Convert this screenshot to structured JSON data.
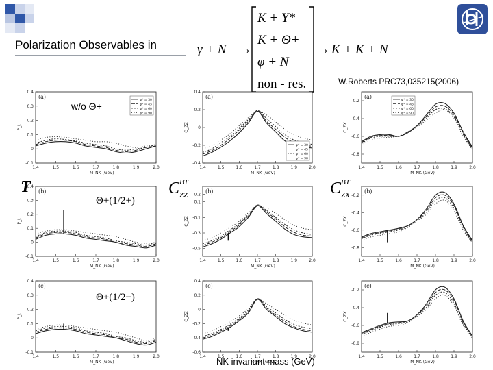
{
  "slide": {
    "title": "Polarization Observables in",
    "citation": "W.Roberts PRC73,035215(2006)",
    "xaxis_title": "NK invariant mass (GeV)",
    "accent_color": "#1f3f8f"
  },
  "reaction": {
    "initial": "γ + N",
    "arrow1": "→",
    "intermediates": [
      "K + Y*",
      "K + Θ+",
      "φ + N",
      "non - res."
    ],
    "arrow2": "→",
    "final": "K + K + N"
  },
  "row_labels": [
    "w/o  Θ+",
    "Θ+(1/2+)",
    "Θ+(1/2−)"
  ],
  "observables": [
    {
      "name": "T"
    },
    {
      "name": "C",
      "sup": "BT",
      "sub": "ZZ"
    },
    {
      "name": "C",
      "sup": "BT",
      "sub": "ZX"
    }
  ],
  "chart_data": {
    "type": "line",
    "x_tick_labels": [
      "1.4",
      "1.5",
      "1.6",
      "1.7",
      "1.8",
      "1.9",
      "2.0"
    ],
    "x": [
      1.4,
      1.45,
      1.5,
      1.55,
      1.6,
      1.65,
      1.7,
      1.75,
      1.8,
      1.85,
      1.9,
      1.95,
      2.0
    ],
    "xlim": [
      1.4,
      2.0
    ],
    "xlabel": "M_NK (GeV)",
    "line_names": [
      "φ* = 30",
      "φ* = 45",
      "φ* = 60",
      "φ* = 90"
    ],
    "panels": [
      {
        "row": 0,
        "col": 0,
        "label": "(a)",
        "ylabel": "P_t",
        "ylim": [
          -0.1,
          0.4
        ],
        "y_tick_labels": [
          "-0.1",
          "0",
          "0.1",
          "0.2",
          "0.3",
          "0.4"
        ],
        "legend": "top-right",
        "series": [
          {
            "name": "φ* = 30",
            "values": [
              0.02,
              0.04,
              0.05,
              0.05,
              0.04,
              0.02,
              0.01,
              0.0,
              -0.02,
              -0.03,
              -0.02,
              0.0,
              0.02
            ]
          },
          {
            "name": "φ* = 45",
            "values": [
              0.03,
              0.05,
              0.06,
              0.06,
              0.05,
              0.03,
              0.02,
              0.01,
              -0.01,
              -0.02,
              -0.01,
              0.01,
              0.02
            ]
          },
          {
            "name": "φ* = 60",
            "values": [
              0.04,
              0.06,
              0.07,
              0.065,
              0.055,
              0.04,
              0.03,
              0.02,
              0.0,
              -0.01,
              0.0,
              0.01,
              0.03
            ]
          },
          {
            "name": "φ* = 90",
            "values": [
              0.06,
              0.08,
              0.085,
              0.08,
              0.07,
              0.06,
              0.05,
              0.05,
              0.04,
              0.02,
              0.01,
              0.02,
              0.03
            ]
          }
        ]
      },
      {
        "row": 0,
        "col": 1,
        "label": "(a)",
        "ylabel": "C_ZZ",
        "ylim": [
          -0.4,
          0.4
        ],
        "y_tick_labels": [
          "-0.4",
          "-0.2",
          "0",
          "0.2",
          "0.4"
        ],
        "legend": "bottom-right",
        "series": [
          {
            "name": "φ* = 30",
            "values": [
              -0.32,
              -0.28,
              -0.22,
              -0.15,
              -0.06,
              0.05,
              0.18,
              0.05,
              -0.05,
              -0.15,
              -0.2,
              -0.22,
              -0.23
            ]
          },
          {
            "name": "φ* = 45",
            "values": [
              -0.3,
              -0.26,
              -0.2,
              -0.12,
              -0.03,
              0.07,
              0.19,
              0.07,
              -0.02,
              -0.11,
              -0.17,
              -0.2,
              -0.21
            ]
          },
          {
            "name": "φ* = 60",
            "values": [
              -0.28,
              -0.24,
              -0.17,
              -0.1,
              -0.01,
              0.09,
              0.19,
              0.1,
              0.01,
              -0.08,
              -0.14,
              -0.17,
              -0.19
            ]
          },
          {
            "name": "φ* = 90",
            "values": [
              -0.24,
              -0.2,
              -0.14,
              -0.07,
              0.02,
              0.11,
              0.18,
              0.14,
              0.06,
              -0.02,
              -0.08,
              -0.12,
              -0.14
            ]
          }
        ]
      },
      {
        "row": 0,
        "col": 2,
        "label": "(a)",
        "ylabel": "C_ZX",
        "ylim": [
          -0.9,
          -0.1
        ],
        "y_tick_labels": [
          "-0.8",
          "-0.6",
          "-0.4",
          "-0.2"
        ],
        "legend": "top-left",
        "series": [
          {
            "name": "φ* = 30",
            "values": [
              -0.66,
              -0.6,
              -0.58,
              -0.58,
              -0.6,
              -0.56,
              -0.48,
              -0.36,
              -0.24,
              -0.23,
              -0.34,
              -0.55,
              -0.72
            ]
          },
          {
            "name": "φ* = 45",
            "values": [
              -0.67,
              -0.61,
              -0.59,
              -0.59,
              -0.6,
              -0.55,
              -0.48,
              -0.38,
              -0.27,
              -0.26,
              -0.36,
              -0.56,
              -0.73
            ]
          },
          {
            "name": "φ* = 60",
            "values": [
              -0.68,
              -0.62,
              -0.6,
              -0.6,
              -0.6,
              -0.55,
              -0.49,
              -0.4,
              -0.3,
              -0.29,
              -0.38,
              -0.58,
              -0.74
            ]
          },
          {
            "name": "φ* = 90",
            "values": [
              -0.7,
              -0.64,
              -0.62,
              -0.61,
              -0.6,
              -0.56,
              -0.5,
              -0.42,
              -0.34,
              -0.3,
              -0.4,
              -0.6,
              -0.75
            ]
          }
        ]
      },
      {
        "row": 1,
        "col": 0,
        "label": "(b)",
        "ylabel": "P_t",
        "ylim": [
          -0.1,
          0.4
        ],
        "y_tick_labels": [
          "-0.1",
          "0",
          "0.1",
          "0.2",
          "0.3",
          "0.4"
        ],
        "spike_x": 1.54,
        "spike_y": 0.23,
        "series": [
          {
            "name": "φ* = 30",
            "values": [
              0.02,
              0.05,
              0.06,
              0.06,
              0.05,
              0.03,
              0.02,
              0.01,
              0.0,
              -0.02,
              -0.03,
              -0.04,
              -0.02
            ]
          },
          {
            "name": "φ* = 45",
            "values": [
              0.03,
              0.06,
              0.07,
              0.07,
              0.06,
              0.04,
              0.03,
              0.02,
              0.0,
              -0.01,
              -0.02,
              -0.03,
              -0.01
            ]
          },
          {
            "name": "φ* = 60",
            "values": [
              0.04,
              0.07,
              0.08,
              0.08,
              0.07,
              0.05,
              0.04,
              0.03,
              0.01,
              0.0,
              -0.01,
              -0.02,
              0.0
            ]
          },
          {
            "name": "φ* = 90",
            "values": [
              0.06,
              0.08,
              0.09,
              0.09,
              0.08,
              0.07,
              0.06,
              0.05,
              0.04,
              0.02,
              0.0,
              -0.01,
              0.0
            ]
          }
        ]
      },
      {
        "row": 1,
        "col": 1,
        "label": "(b)",
        "ylabel": "C_ZZ",
        "ylim": [
          -0.6,
          0.3
        ],
        "y_tick_labels": [
          "-0.5",
          "-0.3",
          "-0.1",
          "0.1",
          "0.2"
        ],
        "spike_x": 1.54,
        "spike_y": -0.4,
        "series": [
          {
            "name": "φ* = 30",
            "values": [
              -0.48,
              -0.44,
              -0.38,
              -0.3,
              -0.22,
              -0.1,
              0.05,
              -0.05,
              -0.15,
              -0.25,
              -0.32,
              -0.35,
              -0.36
            ]
          },
          {
            "name": "φ* = 45",
            "values": [
              -0.46,
              -0.42,
              -0.36,
              -0.28,
              -0.2,
              -0.08,
              0.06,
              -0.03,
              -0.12,
              -0.22,
              -0.29,
              -0.33,
              -0.34
            ]
          },
          {
            "name": "φ* = 60",
            "values": [
              -0.44,
              -0.4,
              -0.34,
              -0.26,
              -0.18,
              -0.06,
              0.06,
              -0.01,
              -0.1,
              -0.19,
              -0.26,
              -0.3,
              -0.32
            ]
          },
          {
            "name": "φ* = 90",
            "values": [
              -0.4,
              -0.36,
              -0.3,
              -0.23,
              -0.15,
              -0.04,
              0.05,
              0.02,
              -0.05,
              -0.13,
              -0.2,
              -0.24,
              -0.26
            ]
          }
        ]
      },
      {
        "row": 1,
        "col": 2,
        "label": "(b)",
        "ylabel": "C_ZX",
        "ylim": [
          -0.9,
          -0.1
        ],
        "y_tick_labels": [
          "-0.8",
          "-0.6",
          "-0.4",
          "-0.2"
        ],
        "spike_x": 1.54,
        "spike_y": -0.74,
        "series": [
          {
            "name": "φ* = 30",
            "values": [
              -0.68,
              -0.64,
              -0.62,
              -0.6,
              -0.58,
              -0.55,
              -0.48,
              -0.36,
              -0.2,
              -0.17,
              -0.3,
              -0.55,
              -0.72
            ]
          },
          {
            "name": "φ* = 45",
            "values": [
              -0.69,
              -0.65,
              -0.63,
              -0.61,
              -0.59,
              -0.55,
              -0.48,
              -0.38,
              -0.23,
              -0.2,
              -0.32,
              -0.56,
              -0.73
            ]
          },
          {
            "name": "φ* = 60",
            "values": [
              -0.7,
              -0.66,
              -0.64,
              -0.62,
              -0.6,
              -0.56,
              -0.49,
              -0.4,
              -0.26,
              -0.23,
              -0.35,
              -0.58,
              -0.74
            ]
          },
          {
            "name": "φ* = 90",
            "values": [
              -0.72,
              -0.68,
              -0.66,
              -0.64,
              -0.62,
              -0.57,
              -0.5,
              -0.42,
              -0.3,
              -0.26,
              -0.38,
              -0.6,
              -0.75
            ]
          }
        ]
      },
      {
        "row": 2,
        "col": 0,
        "label": "(c)",
        "ylabel": "P_t",
        "ylim": [
          -0.1,
          0.4
        ],
        "y_tick_labels": [
          "-0.1",
          "0",
          "0.1",
          "0.2",
          "0.3",
          "0.4"
        ],
        "spike_x": 1.54,
        "spike_y": 0.1,
        "series": [
          {
            "name": "φ* = 30",
            "values": [
              0.03,
              0.05,
              0.06,
              0.06,
              0.05,
              0.03,
              0.02,
              0.01,
              0.0,
              -0.02,
              -0.04,
              -0.05,
              -0.03
            ]
          },
          {
            "name": "φ* = 45",
            "values": [
              0.04,
              0.06,
              0.07,
              0.07,
              0.06,
              0.04,
              0.03,
              0.02,
              0.0,
              -0.01,
              -0.03,
              -0.04,
              -0.02
            ]
          },
          {
            "name": "φ* = 60",
            "values": [
              0.05,
              0.07,
              0.08,
              0.08,
              0.07,
              0.05,
              0.04,
              0.03,
              0.01,
              0.0,
              -0.02,
              -0.03,
              -0.01
            ]
          },
          {
            "name": "φ* = 90",
            "values": [
              0.06,
              0.08,
              0.09,
              0.09,
              0.08,
              0.07,
              0.06,
              0.05,
              0.04,
              0.02,
              0.0,
              -0.02,
              0.0
            ]
          }
        ]
      },
      {
        "row": 2,
        "col": 1,
        "label": "(c)",
        "ylabel": "C_ZZ",
        "ylim": [
          -0.6,
          0.4
        ],
        "y_tick_labels": [
          "-0.6",
          "-0.4",
          "-0.2",
          "0",
          "0.2",
          "0.4"
        ],
        "spike_x": 1.54,
        "spike_y": -0.3,
        "series": [
          {
            "name": "φ* = 30",
            "values": [
              -0.42,
              -0.38,
              -0.32,
              -0.25,
              -0.16,
              -0.05,
              0.14,
              0.0,
              -0.1,
              -0.2,
              -0.26,
              -0.3,
              -0.32
            ]
          },
          {
            "name": "φ* = 45",
            "values": [
              -0.4,
              -0.36,
              -0.3,
              -0.23,
              -0.14,
              -0.03,
              0.15,
              0.02,
              -0.08,
              -0.17,
              -0.24,
              -0.28,
              -0.3
            ]
          },
          {
            "name": "φ* = 60",
            "values": [
              -0.38,
              -0.34,
              -0.28,
              -0.21,
              -0.12,
              -0.01,
              0.15,
              0.04,
              -0.05,
              -0.14,
              -0.21,
              -0.25,
              -0.27
            ]
          },
          {
            "name": "φ* = 90",
            "values": [
              -0.34,
              -0.3,
              -0.24,
              -0.17,
              -0.09,
              0.01,
              0.14,
              0.08,
              0.0,
              -0.08,
              -0.15,
              -0.19,
              -0.22
            ]
          }
        ]
      },
      {
        "row": 2,
        "col": 2,
        "label": "(c)",
        "ylabel": "C_ZX",
        "ylim": [
          -0.9,
          -0.1
        ],
        "y_tick_labels": [
          "-0.8",
          "-0.6",
          "-0.4",
          "-0.2"
        ],
        "spike_x": 1.54,
        "spike_y": -0.46,
        "series": [
          {
            "name": "φ* = 30",
            "values": [
              -0.68,
              -0.64,
              -0.6,
              -0.57,
              -0.56,
              -0.55,
              -0.48,
              -0.36,
              -0.2,
              -0.17,
              -0.3,
              -0.55,
              -0.72
            ]
          },
          {
            "name": "φ* = 45",
            "values": [
              -0.69,
              -0.65,
              -0.61,
              -0.58,
              -0.57,
              -0.55,
              -0.48,
              -0.38,
              -0.23,
              -0.2,
              -0.32,
              -0.56,
              -0.73
            ]
          },
          {
            "name": "φ* = 60",
            "values": [
              -0.7,
              -0.66,
              -0.62,
              -0.59,
              -0.58,
              -0.56,
              -0.49,
              -0.4,
              -0.26,
              -0.23,
              -0.35,
              -0.58,
              -0.74
            ]
          },
          {
            "name": "φ* = 90",
            "values": [
              -0.72,
              -0.68,
              -0.64,
              -0.61,
              -0.6,
              -0.57,
              -0.5,
              -0.42,
              -0.3,
              -0.26,
              -0.38,
              -0.6,
              -0.75
            ]
          }
        ]
      }
    ]
  }
}
